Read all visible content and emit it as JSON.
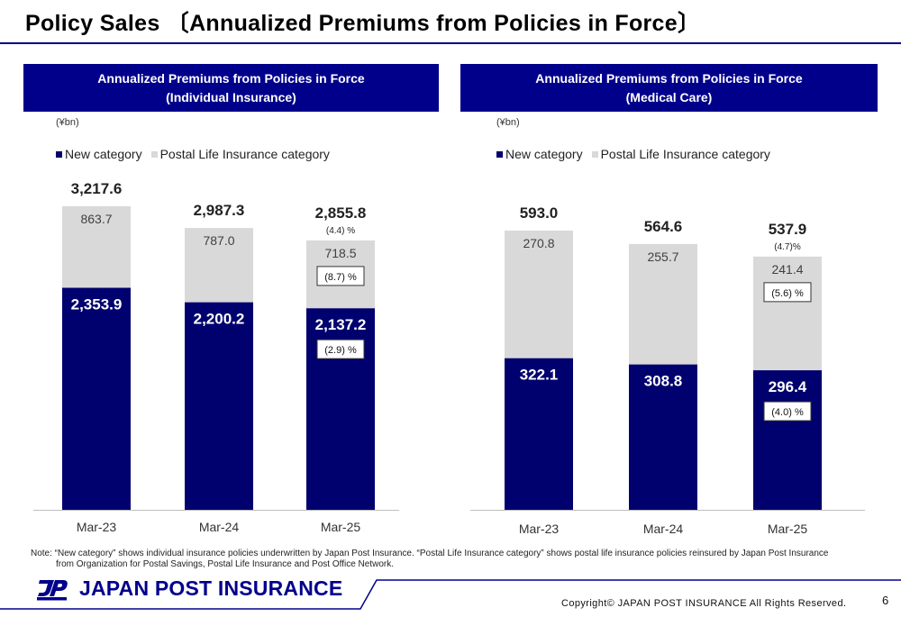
{
  "page": {
    "title": "Policy Sales 〔Annualized Premiums from Policies in Force〕",
    "note_line1": "Note: “New category” shows individual insurance policies underwritten by Japan Post Insurance. “Postal Life Insurance category” shows postal life insurance policies reinsured by Japan Post Insurance",
    "note_line2": "from Organization for Postal Savings, Postal Life Insurance and Post Office Network.",
    "logo_text": "JAPAN POST INSURANCE",
    "copyright": "Copyright© JAPAN POST INSURANCE All Rights Reserved.",
    "page_number": "6"
  },
  "colors": {
    "new": "#00006e",
    "postal": "#d9d9d9",
    "brand": "#00008b"
  },
  "chart_data": [
    {
      "type": "bar",
      "stacked": true,
      "title": "Annualized Premiums from Policies in Force",
      "subtitle": "(Individual Insurance)",
      "unit": "(¥bn)",
      "categories": [
        "Mar-23",
        "Mar-24",
        "Mar-25"
      ],
      "series": [
        {
          "name": "New category",
          "values": [
            2353.9,
            2200.2,
            2137.2
          ],
          "labels": [
            "2,353.9",
            "2,200.2",
            "2,137.2"
          ]
        },
        {
          "name": "Postal Life Insurance category",
          "values": [
            863.7,
            787.0,
            718.5
          ],
          "labels": [
            "863.7",
            "787.0",
            "718.5"
          ]
        }
      ],
      "totals": [
        "3,217.6",
        "2,987.3",
        "2,855.8"
      ],
      "annotations": {
        "total_change": "(4.4) %",
        "postal_change": "(8.7) %",
        "new_change": "(2.9) %"
      },
      "ylim": [
        0,
        3217.6
      ]
    },
    {
      "type": "bar",
      "stacked": true,
      "title": "Annualized Premiums from Policies in Force",
      "subtitle": "(Medical Care)",
      "unit": "(¥bn)",
      "categories": [
        "Mar-23",
        "Mar-24",
        "Mar-25"
      ],
      "series": [
        {
          "name": "New category",
          "values": [
            322.1,
            308.8,
            296.4
          ],
          "labels": [
            "322.1",
            "308.8",
            "296.4"
          ]
        },
        {
          "name": "Postal Life Insurance category",
          "values": [
            270.8,
            255.7,
            241.4
          ],
          "labels": [
            "270.8",
            "255.7",
            "241.4"
          ]
        }
      ],
      "totals": [
        "593.0",
        "564.6",
        "537.9"
      ],
      "annotations": {
        "total_change": "(4.7)%",
        "postal_change": "(5.6) %",
        "new_change": "(4.0) %"
      },
      "ylim": [
        0,
        593.0
      ]
    }
  ]
}
